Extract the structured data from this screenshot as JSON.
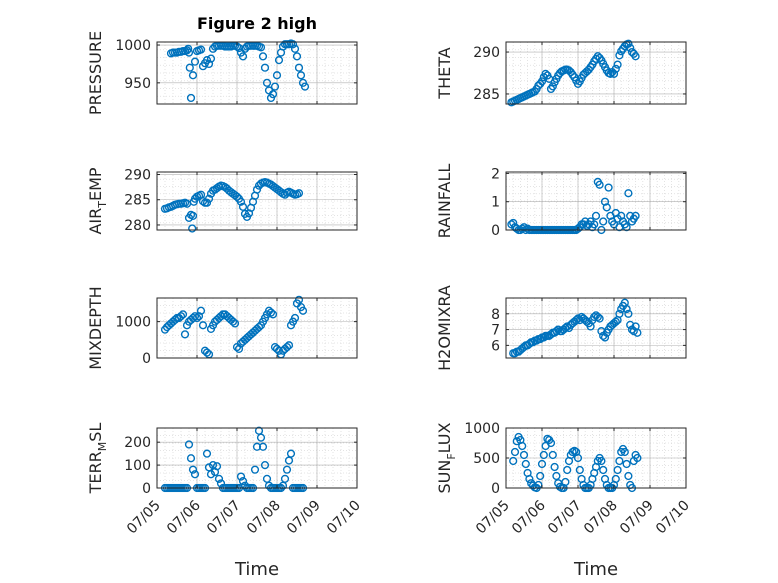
{
  "colors": {
    "marker": "#0072BD",
    "axis": "#262626",
    "grid": "#b0b0b0",
    "minor_grid": "#dcdcdc"
  },
  "chart_data": [
    {
      "type": "scatter",
      "title": "Figure 2 high",
      "ylabel": "PRESSURE",
      "xlabel": "",
      "ylim": [
        922,
        1004
      ],
      "yticks": [
        950,
        1000
      ],
      "ytick_labels": [
        "950",
        "1000"
      ],
      "xlim": [
        0,
        5
      ],
      "xticks": [
        0,
        1,
        2,
        3,
        4,
        5
      ],
      "xtick_labels": [],
      "grid": true,
      "x": [
        0.35,
        0.4,
        0.45,
        0.5,
        0.55,
        0.6,
        0.65,
        0.7,
        0.75,
        0.78,
        0.8,
        0.82,
        0.85,
        0.9,
        0.95,
        1.0,
        1.05,
        1.1,
        1.15,
        1.2,
        1.25,
        1.3,
        1.35,
        1.4,
        1.45,
        1.5,
        1.55,
        1.6,
        1.65,
        1.7,
        1.75,
        1.8,
        1.85,
        1.9,
        1.95,
        2.0,
        2.05,
        2.1,
        2.15,
        2.2,
        2.25,
        2.3,
        2.35,
        2.4,
        2.45,
        2.5,
        2.55,
        2.6,
        2.65,
        2.7,
        2.75,
        2.8,
        2.85,
        2.9,
        2.95,
        3.0,
        3.05,
        3.1,
        3.15,
        3.2,
        3.25,
        3.3,
        3.35,
        3.4,
        3.45,
        3.5,
        3.55,
        3.6,
        3.65,
        3.7
      ],
      "y": [
        989,
        990,
        990,
        990,
        991,
        991,
        992,
        992,
        993,
        995,
        990,
        970,
        930,
        960,
        978,
        992,
        993,
        994,
        972,
        976,
        980,
        975,
        982,
        995,
        998,
        999,
        999,
        999,
        999,
        998,
        998,
        998,
        998,
        999,
        999,
        998,
        996,
        990,
        985,
        995,
        998,
        999,
        999,
        999,
        999,
        999,
        998,
        997,
        985,
        970,
        950,
        940,
        930,
        935,
        945,
        960,
        980,
        990,
        998,
        1001,
        1001,
        1001,
        1002,
        1001,
        995,
        985,
        970,
        960,
        950,
        945
      ]
    },
    {
      "type": "scatter",
      "ylabel": "THETA",
      "xlabel": "",
      "ylim": [
        283.8,
        291.2
      ],
      "yticks": [
        285,
        290
      ],
      "ytick_labels": [
        "285",
        "290"
      ],
      "xlim": [
        0,
        5
      ],
      "xticks": [
        0,
        1,
        2,
        3,
        4,
        5
      ],
      "xtick_labels": [],
      "grid": true,
      "x": [
        0.15,
        0.2,
        0.25,
        0.3,
        0.35,
        0.4,
        0.45,
        0.5,
        0.55,
        0.6,
        0.65,
        0.7,
        0.75,
        0.8,
        0.85,
        0.9,
        0.95,
        1.0,
        1.05,
        1.1,
        1.15,
        1.2,
        1.25,
        1.3,
        1.35,
        1.4,
        1.45,
        1.5,
        1.55,
        1.6,
        1.65,
        1.7,
        1.75,
        1.8,
        1.85,
        1.9,
        1.95,
        2.0,
        2.05,
        2.1,
        2.15,
        2.2,
        2.25,
        2.3,
        2.35,
        2.4,
        2.45,
        2.5,
        2.55,
        2.6,
        2.65,
        2.7,
        2.75,
        2.8,
        2.85,
        2.9,
        2.95,
        3.0,
        3.05,
        3.1,
        3.15,
        3.2,
        3.25,
        3.3,
        3.35,
        3.4,
        3.45,
        3.5,
        3.55,
        3.6
      ],
      "y": [
        284.0,
        284.1,
        284.2,
        284.3,
        284.4,
        284.5,
        284.6,
        284.7,
        284.8,
        284.9,
        285.0,
        285.1,
        285.2,
        285.3,
        285.6,
        286.0,
        286.2,
        286.5,
        287.0,
        287.4,
        287.2,
        286.8,
        285.6,
        285.9,
        286.4,
        286.8,
        287.2,
        287.5,
        287.7,
        287.8,
        287.9,
        287.9,
        287.8,
        287.6,
        287.3,
        287.0,
        286.6,
        286.2,
        286.5,
        286.9,
        287.3,
        287.5,
        287.7,
        287.9,
        288.2,
        288.5,
        288.9,
        289.2,
        289.5,
        289.3,
        289.0,
        288.6,
        288.2,
        287.8,
        287.5,
        287.4,
        287.6,
        287.4,
        288.0,
        288.5,
        289.6,
        290.1,
        290.4,
        290.7,
        290.9,
        291.0,
        290.5,
        290.0,
        289.8,
        289.5
      ]
    },
    {
      "type": "scatter",
      "ylabel": "AIR_TEMP",
      "xlabel": "",
      "ylim": [
        279,
        290.5
      ],
      "yticks": [
        280,
        285,
        290
      ],
      "ytick_labels": [
        "280",
        "285",
        "290"
      ],
      "xlim": [
        0,
        5
      ],
      "xticks": [
        0,
        1,
        2,
        3,
        4,
        5
      ],
      "xtick_labels": [],
      "grid": true,
      "x": [
        0.2,
        0.25,
        0.3,
        0.35,
        0.4,
        0.45,
        0.5,
        0.55,
        0.6,
        0.65,
        0.7,
        0.75,
        0.8,
        0.85,
        0.88,
        0.9,
        0.92,
        0.95,
        1.0,
        1.05,
        1.1,
        1.15,
        1.2,
        1.25,
        1.3,
        1.35,
        1.4,
        1.45,
        1.5,
        1.55,
        1.6,
        1.65,
        1.7,
        1.75,
        1.8,
        1.85,
        1.9,
        1.95,
        2.0,
        2.05,
        2.1,
        2.15,
        2.2,
        2.25,
        2.3,
        2.35,
        2.4,
        2.45,
        2.5,
        2.55,
        2.6,
        2.65,
        2.7,
        2.75,
        2.8,
        2.85,
        2.9,
        2.95,
        3.0,
        3.05,
        3.1,
        3.15,
        3.2,
        3.25,
        3.3,
        3.35,
        3.4,
        3.45,
        3.5,
        3.55
      ],
      "y": [
        283.2,
        283.3,
        283.5,
        283.6,
        283.8,
        284.0,
        284.1,
        284.2,
        284.2,
        284.3,
        284.4,
        284.2,
        281.4,
        282.0,
        279.3,
        281.8,
        284.6,
        285.2,
        285.6,
        285.8,
        286.0,
        284.7,
        284.4,
        284.4,
        285.2,
        286.2,
        286.8,
        287.0,
        287.3,
        287.6,
        287.8,
        287.7,
        287.5,
        287.2,
        286.8,
        286.5,
        286.2,
        285.9,
        285.6,
        285.2,
        284.6,
        283.6,
        282.2,
        281.6,
        282.3,
        283.4,
        284.6,
        285.8,
        287.0,
        287.8,
        288.2,
        288.4,
        288.5,
        288.4,
        288.2,
        288.0,
        287.7,
        287.4,
        287.1,
        286.8,
        286.5,
        286.2,
        286.0,
        286.4,
        286.6,
        286.4,
        286.2,
        286.0,
        286.1,
        286.3
      ]
    },
    {
      "type": "scatter",
      "ylabel": "RAINFALL",
      "xlabel": "",
      "ylim": [
        0,
        2.05
      ],
      "yticks": [
        0,
        1,
        2
      ],
      "ytick_labels": [
        "0",
        "1",
        "2"
      ],
      "xlim": [
        0,
        5
      ],
      "xticks": [
        0,
        1,
        2,
        3,
        4,
        5
      ],
      "xtick_labels": [],
      "grid": true,
      "x": [
        0.15,
        0.2,
        0.25,
        0.3,
        0.35,
        0.4,
        0.45,
        0.5,
        0.55,
        0.6,
        0.65,
        0.7,
        0.75,
        0.8,
        0.85,
        0.9,
        0.95,
        1.0,
        1.05,
        1.1,
        1.15,
        1.2,
        1.25,
        1.3,
        1.35,
        1.4,
        1.45,
        1.5,
        1.55,
        1.6,
        1.65,
        1.7,
        1.75,
        1.8,
        1.85,
        1.9,
        1.95,
        2.0,
        2.05,
        2.1,
        2.15,
        2.2,
        2.25,
        2.3,
        2.35,
        2.4,
        2.45,
        2.5,
        2.55,
        2.6,
        2.65,
        2.7,
        2.75,
        2.8,
        2.85,
        2.9,
        2.95,
        3.0,
        3.05,
        3.1,
        3.15,
        3.2,
        3.25,
        3.3,
        3.35,
        3.4,
        3.45,
        3.5,
        3.55,
        3.6
      ],
      "y": [
        0.2,
        0.25,
        0.1,
        0.05,
        0.0,
        0.0,
        0.05,
        0.1,
        0.0,
        0.05,
        0.0,
        0.0,
        0.0,
        0.0,
        0.0,
        0.0,
        0.0,
        0.0,
        0.0,
        0.0,
        0.0,
        0.0,
        0.0,
        0.0,
        0.0,
        0.0,
        0.0,
        0.0,
        0.0,
        0.0,
        0.0,
        0.0,
        0.0,
        0.0,
        0.0,
        0.0,
        0.0,
        0.05,
        0.1,
        0.2,
        0.2,
        0.3,
        0.15,
        0.2,
        0.3,
        0.1,
        0.2,
        0.5,
        1.7,
        1.6,
        0.0,
        0.3,
        1.0,
        0.8,
        1.5,
        0.5,
        0.3,
        0.2,
        0.6,
        0.4,
        0.1,
        0.5,
        0.3,
        0.2,
        0.1,
        1.3,
        0.5,
        0.3,
        0.4,
        0.5
      ]
    },
    {
      "type": "scatter",
      "ylabel": "MIXDEPTH",
      "xlabel": "",
      "ylim": [
        0,
        1650
      ],
      "yticks": [
        0,
        1000
      ],
      "ytick_labels": [
        "0",
        "1000"
      ],
      "xlim": [
        0,
        5
      ],
      "xticks": [
        0,
        1,
        2,
        3,
        4,
        5
      ],
      "xtick_labels": [],
      "grid": true,
      "x": [
        0.2,
        0.25,
        0.3,
        0.35,
        0.4,
        0.45,
        0.5,
        0.55,
        0.6,
        0.65,
        0.7,
        0.75,
        0.8,
        0.85,
        0.9,
        0.95,
        1.0,
        1.05,
        1.1,
        1.15,
        1.2,
        1.25,
        1.3,
        1.35,
        1.4,
        1.45,
        1.5,
        1.55,
        1.6,
        1.65,
        1.7,
        1.75,
        1.8,
        1.85,
        1.9,
        1.95,
        2.0,
        2.05,
        2.1,
        2.15,
        2.2,
        2.25,
        2.3,
        2.35,
        2.4,
        2.45,
        2.5,
        2.55,
        2.6,
        2.65,
        2.7,
        2.75,
        2.8,
        2.85,
        2.9,
        2.95,
        3.0,
        3.05,
        3.1,
        3.15,
        3.2,
        3.25,
        3.3,
        3.35,
        3.4,
        3.45,
        3.5,
        3.55,
        3.6,
        3.65
      ],
      "y": [
        780,
        850,
        900,
        950,
        1000,
        1050,
        1100,
        1100,
        1150,
        1200,
        650,
        900,
        1000,
        1050,
        1100,
        1150,
        1100,
        1150,
        1300,
        900,
        200,
        150,
        100,
        800,
        900,
        1000,
        1050,
        1100,
        1150,
        1200,
        1200,
        1150,
        1100,
        1050,
        1000,
        950,
        300,
        250,
        400,
        450,
        500,
        550,
        600,
        650,
        700,
        750,
        800,
        850,
        900,
        1000,
        1100,
        1200,
        1300,
        1250,
        1200,
        300,
        250,
        200,
        100,
        200,
        250,
        300,
        350,
        900,
        1000,
        1100,
        1500,
        1600,
        1400,
        1300
      ]
    },
    {
      "type": "scatter",
      "ylabel": "H2OMIXRA",
      "xlabel": "",
      "ylim": [
        5.2,
        9
      ],
      "yticks": [
        6,
        7,
        8
      ],
      "ytick_labels": [
        "6",
        "7",
        "8"
      ],
      "xlim": [
        0,
        5
      ],
      "xticks": [
        0,
        1,
        2,
        3,
        4,
        5
      ],
      "xtick_labels": [],
      "grid": true,
      "x": [
        0.2,
        0.25,
        0.3,
        0.35,
        0.4,
        0.45,
        0.5,
        0.55,
        0.6,
        0.65,
        0.7,
        0.75,
        0.8,
        0.85,
        0.9,
        0.95,
        1.0,
        1.05,
        1.1,
        1.15,
        1.2,
        1.25,
        1.3,
        1.35,
        1.4,
        1.45,
        1.5,
        1.55,
        1.6,
        1.65,
        1.7,
        1.75,
        1.8,
        1.85,
        1.9,
        1.95,
        2.0,
        2.05,
        2.1,
        2.15,
        2.2,
        2.25,
        2.3,
        2.35,
        2.4,
        2.45,
        2.5,
        2.55,
        2.6,
        2.65,
        2.7,
        2.75,
        2.8,
        2.85,
        2.9,
        2.95,
        3.0,
        3.05,
        3.1,
        3.15,
        3.2,
        3.25,
        3.3,
        3.35,
        3.4,
        3.45,
        3.5,
        3.55,
        3.6,
        3.65
      ],
      "y": [
        5.5,
        5.5,
        5.6,
        5.6,
        5.7,
        5.8,
        5.9,
        6.0,
        6.0,
        6.1,
        6.2,
        6.2,
        6.3,
        6.3,
        6.4,
        6.4,
        6.5,
        6.5,
        6.6,
        6.6,
        6.6,
        6.7,
        6.8,
        6.8,
        6.9,
        7.0,
        6.9,
        6.9,
        7.0,
        7.1,
        7.2,
        7.1,
        7.3,
        7.4,
        7.5,
        7.6,
        7.7,
        7.6,
        7.8,
        7.7,
        7.6,
        7.5,
        7.4,
        7.2,
        7.6,
        7.8,
        7.9,
        7.8,
        7.7,
        6.9,
        6.6,
        6.5,
        6.8,
        7.0,
        7.2,
        7.3,
        7.4,
        7.5,
        7.6,
        8.0,
        8.3,
        8.5,
        8.7,
        8.3,
        8.0,
        7.3,
        7.0,
        6.9,
        7.2,
        6.8
      ]
    },
    {
      "type": "scatter",
      "ylabel": "TERR_MSL",
      "xlabel": "Time",
      "ylim": [
        0,
        262
      ],
      "yticks": [
        0,
        100,
        200
      ],
      "ytick_labels": [
        "0",
        "100",
        "200"
      ],
      "xlim": [
        0,
        5
      ],
      "xticks": [
        0,
        1,
        2,
        3,
        4,
        5
      ],
      "xtick_labels": [
        "07/05",
        "07/06",
        "07/07",
        "07/08",
        "07/09",
        "07/10"
      ],
      "grid": true,
      "x": [
        0.2,
        0.25,
        0.3,
        0.35,
        0.4,
        0.45,
        0.5,
        0.55,
        0.6,
        0.65,
        0.7,
        0.75,
        0.8,
        0.85,
        0.9,
        0.95,
        1.0,
        1.05,
        1.1,
        1.15,
        1.2,
        1.25,
        1.3,
        1.35,
        1.4,
        1.45,
        1.5,
        1.55,
        1.6,
        1.65,
        1.7,
        1.75,
        1.8,
        1.85,
        1.9,
        1.95,
        2.0,
        2.05,
        2.1,
        2.15,
        2.2,
        2.25,
        2.3,
        2.35,
        2.4,
        2.45,
        2.5,
        2.55,
        2.6,
        2.65,
        2.7,
        2.75,
        2.8,
        2.85,
        2.9,
        2.95,
        3.0,
        3.05,
        3.1,
        3.15,
        3.2,
        3.25,
        3.3,
        3.35,
        3.4,
        3.45,
        3.5,
        3.55,
        3.6,
        3.65
      ],
      "y": [
        0,
        0,
        0,
        0,
        0,
        0,
        0,
        0,
        0,
        0,
        0,
        0,
        190,
        130,
        80,
        60,
        0,
        0,
        0,
        0,
        0,
        150,
        90,
        60,
        100,
        70,
        95,
        40,
        20,
        0,
        0,
        0,
        0,
        0,
        0,
        0,
        0,
        0,
        50,
        30,
        10,
        0,
        0,
        0,
        0,
        80,
        180,
        250,
        220,
        180,
        100,
        40,
        10,
        0,
        0,
        0,
        0,
        0,
        0,
        10,
        40,
        80,
        120,
        150,
        0,
        0,
        0,
        0,
        0,
        0
      ]
    },
    {
      "type": "scatter",
      "ylabel": "SUN_FLUX",
      "xlabel": "Time",
      "ylim": [
        0,
        1000
      ],
      "yticks": [
        0,
        500,
        1000
      ],
      "ytick_labels": [
        "0",
        "500",
        "1000"
      ],
      "xlim": [
        0,
        5
      ],
      "xticks": [
        0,
        1,
        2,
        3,
        4,
        5
      ],
      "xtick_labels": [
        "07/05",
        "07/06",
        "07/07",
        "07/08",
        "07/09",
        "07/10"
      ],
      "grid": true,
      "x": [
        0.2,
        0.25,
        0.3,
        0.35,
        0.4,
        0.45,
        0.5,
        0.55,
        0.6,
        0.65,
        0.7,
        0.75,
        0.8,
        0.85,
        0.9,
        0.95,
        1.0,
        1.05,
        1.1,
        1.15,
        1.2,
        1.25,
        1.3,
        1.35,
        1.4,
        1.45,
        1.5,
        1.55,
        1.6,
        1.65,
        1.7,
        1.75,
        1.8,
        1.85,
        1.9,
        1.95,
        2.0,
        2.05,
        2.1,
        2.15,
        2.2,
        2.25,
        2.3,
        2.35,
        2.4,
        2.45,
        2.5,
        2.55,
        2.6,
        2.65,
        2.7,
        2.75,
        2.8,
        2.85,
        2.9,
        2.95,
        3.0,
        3.05,
        3.1,
        3.15,
        3.2,
        3.25,
        3.3,
        3.35,
        3.4,
        3.45,
        3.5,
        3.55,
        3.6,
        3.65
      ],
      "y": [
        450,
        600,
        780,
        850,
        800,
        700,
        550,
        400,
        250,
        150,
        80,
        40,
        10,
        0,
        50,
        200,
        400,
        550,
        700,
        820,
        800,
        750,
        550,
        350,
        200,
        80,
        20,
        0,
        0,
        100,
        300,
        450,
        550,
        600,
        620,
        600,
        500,
        300,
        150,
        50,
        0,
        0,
        0,
        50,
        150,
        250,
        350,
        450,
        500,
        450,
        300,
        150,
        50,
        0,
        0,
        0,
        50,
        150,
        300,
        450,
        600,
        650,
        600,
        400,
        200,
        50,
        0,
        450,
        550,
        500
      ]
    }
  ]
}
